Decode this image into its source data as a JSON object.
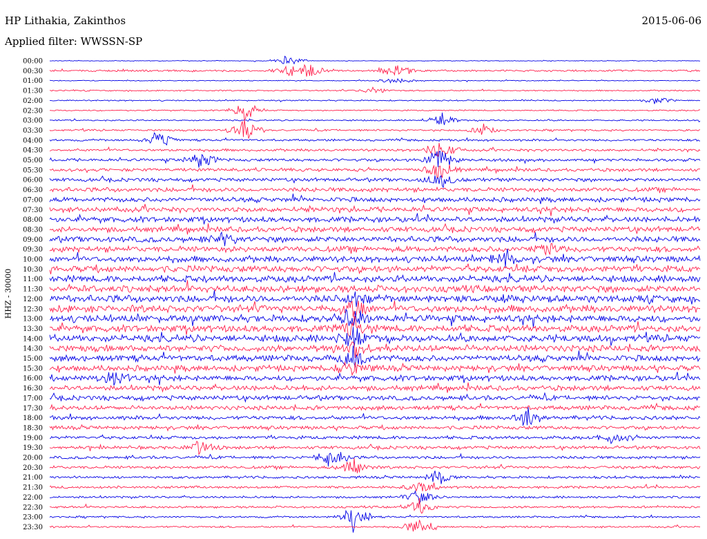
{
  "header": {
    "station": "HP Lithakia, Zakinthos",
    "date": "2015-06-06",
    "filter": "Applied filter: WWSSN-SP"
  },
  "chart_data": {
    "type": "line",
    "title": "HP Lithakia, Zakinthos",
    "date": "2015-06-06",
    "filter": "WWSSN-SP",
    "ylabel": "HHZ - 30000",
    "rows": [
      "00:00",
      "00:30",
      "01:00",
      "01:30",
      "02:00",
      "02:30",
      "03:00",
      "03:30",
      "04:00",
      "04:30",
      "05:00",
      "05:30",
      "06:00",
      "06:30",
      "07:00",
      "07:30",
      "08:00",
      "08:30",
      "09:00",
      "09:30",
      "10:00",
      "10:30",
      "11:00",
      "11:30",
      "12:00",
      "12:30",
      "13:00",
      "13:30",
      "14:00",
      "14:30",
      "15:00",
      "15:30",
      "16:00",
      "16:30",
      "17:00",
      "17:30",
      "18:00",
      "18:30",
      "19:00",
      "19:30",
      "20:00",
      "20:30",
      "21:00",
      "21:30",
      "22:00",
      "22:30",
      "23:00",
      "23:30"
    ],
    "row_colors": [
      "#0000e6",
      "#ff1f4b"
    ],
    "row_noise": [
      0.2,
      0.5,
      0.25,
      0.35,
      0.35,
      0.35,
      0.4,
      0.5,
      0.6,
      0.7,
      0.8,
      0.9,
      1.0,
      1.2,
      1.3,
      1.4,
      1.5,
      1.5,
      1.6,
      1.6,
      1.7,
      1.8,
      1.8,
      1.9,
      2.0,
      2.0,
      2.0,
      1.9,
      1.9,
      1.8,
      1.7,
      1.6,
      1.5,
      1.4,
      1.3,
      1.2,
      1.1,
      1.0,
      0.9,
      0.9,
      0.8,
      0.8,
      0.7,
      0.7,
      0.6,
      0.6,
      0.5,
      0.5
    ],
    "events": [
      {
        "row": 0,
        "minute": 11,
        "amp": 8
      },
      {
        "row": 1,
        "minute": 11,
        "amp": 6
      },
      {
        "row": 1,
        "minute": 12,
        "amp": 10
      },
      {
        "row": 1,
        "minute": 16,
        "amp": 12
      },
      {
        "row": 2,
        "minute": 16,
        "amp": 6
      },
      {
        "row": 3,
        "minute": 15,
        "amp": 5
      },
      {
        "row": 4,
        "minute": 28,
        "amp": 7
      },
      {
        "row": 5,
        "minute": 9,
        "amp": 14
      },
      {
        "row": 6,
        "minute": 18,
        "amp": 12
      },
      {
        "row": 7,
        "minute": 9,
        "amp": 16
      },
      {
        "row": 7,
        "minute": 20,
        "amp": 8
      },
      {
        "row": 8,
        "minute": 5,
        "amp": 12
      },
      {
        "row": 9,
        "minute": 18,
        "amp": 14
      },
      {
        "row": 10,
        "minute": 7,
        "amp": 12
      },
      {
        "row": 10,
        "minute": 18,
        "amp": 16
      },
      {
        "row": 11,
        "minute": 18,
        "amp": 14
      },
      {
        "row": 12,
        "minute": 18,
        "amp": 10
      },
      {
        "row": 18,
        "minute": 8,
        "amp": 10
      },
      {
        "row": 19,
        "minute": 23,
        "amp": 10
      },
      {
        "row": 20,
        "minute": 21,
        "amp": 9
      },
      {
        "row": 24,
        "minute": 14,
        "amp": 10
      },
      {
        "row": 25,
        "minute": 14,
        "amp": 12
      },
      {
        "row": 26,
        "minute": 14,
        "amp": 14
      },
      {
        "row": 27,
        "minute": 14,
        "amp": 15
      },
      {
        "row": 28,
        "minute": 14,
        "amp": 14
      },
      {
        "row": 29,
        "minute": 14,
        "amp": 12
      },
      {
        "row": 30,
        "minute": 14,
        "amp": 14
      },
      {
        "row": 31,
        "minute": 14,
        "amp": 12
      },
      {
        "row": 32,
        "minute": 3,
        "amp": 10
      },
      {
        "row": 36,
        "minute": 22,
        "amp": 12
      },
      {
        "row": 38,
        "minute": 26,
        "amp": 10
      },
      {
        "row": 39,
        "minute": 7,
        "amp": 12
      },
      {
        "row": 40,
        "minute": 13,
        "amp": 16
      },
      {
        "row": 41,
        "minute": 14,
        "amp": 14
      },
      {
        "row": 42,
        "minute": 18,
        "amp": 12
      },
      {
        "row": 43,
        "minute": 17,
        "amp": 10
      },
      {
        "row": 44,
        "minute": 17,
        "amp": 10
      },
      {
        "row": 45,
        "minute": 17,
        "amp": 12
      },
      {
        "row": 46,
        "minute": 14,
        "amp": 20
      },
      {
        "row": 47,
        "minute": 17,
        "amp": 16
      }
    ]
  }
}
